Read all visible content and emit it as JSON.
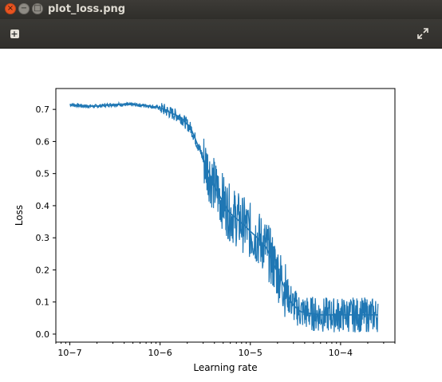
{
  "window": {
    "title": "plot_loss.png"
  },
  "toolbar": {
    "add_icon": "plus-icon",
    "fullscreen_icon": "fullscreen-icon"
  },
  "colors": {
    "line": "#1f77b4",
    "titlebar": "#3a3935",
    "close": "#e95420"
  },
  "chart_data": {
    "type": "line",
    "title": "",
    "xlabel": "Learning rate",
    "ylabel": "Loss",
    "xscale": "log",
    "xlim": [
      7e-08,
      0.0004
    ],
    "ylim": [
      -0.025,
      0.765
    ],
    "x_ticks": [
      1e-07,
      1e-06,
      1e-05,
      0.0001
    ],
    "x_tick_labels": [
      "10−7",
      "10−6",
      "10−5",
      "10−4"
    ],
    "y_ticks": [
      0.0,
      0.1,
      0.2,
      0.3,
      0.4,
      0.5,
      0.6,
      0.7
    ],
    "y_tick_labels": [
      "0.0",
      "0.1",
      "0.2",
      "0.3",
      "0.4",
      "0.5",
      "0.6",
      "0.7"
    ],
    "grid": false,
    "series": [
      {
        "x": [
          1e-07,
          1.5e-07,
          2e-07,
          3e-07,
          5e-07,
          7e-07,
          1e-06,
          1.3e-06,
          1.7e-06,
          2.2e-06,
          2.7e-06,
          3.3e-06,
          4e-06,
          4.8e-06,
          5.8e-06,
          7e-06,
          8.5e-06,
          1e-05,
          1.2e-05,
          1.5e-05,
          1.8e-05,
          2.2e-05,
          2.6e-05,
          3e-05,
          3.6e-05,
          4.5e-05,
          6e-05,
          8e-05,
          0.00011,
          0.00015,
          0.0002,
          0.00026
        ],
        "y": [
          0.715,
          0.71,
          0.71,
          0.715,
          0.715,
          0.712,
          0.705,
          0.69,
          0.675,
          0.64,
          0.58,
          0.52,
          0.46,
          0.42,
          0.38,
          0.36,
          0.34,
          0.32,
          0.3,
          0.27,
          0.22,
          0.17,
          0.12,
          0.09,
          0.07,
          0.065,
          0.06,
          0.06,
          0.06,
          0.06,
          0.06,
          0.06
        ]
      }
    ]
  }
}
